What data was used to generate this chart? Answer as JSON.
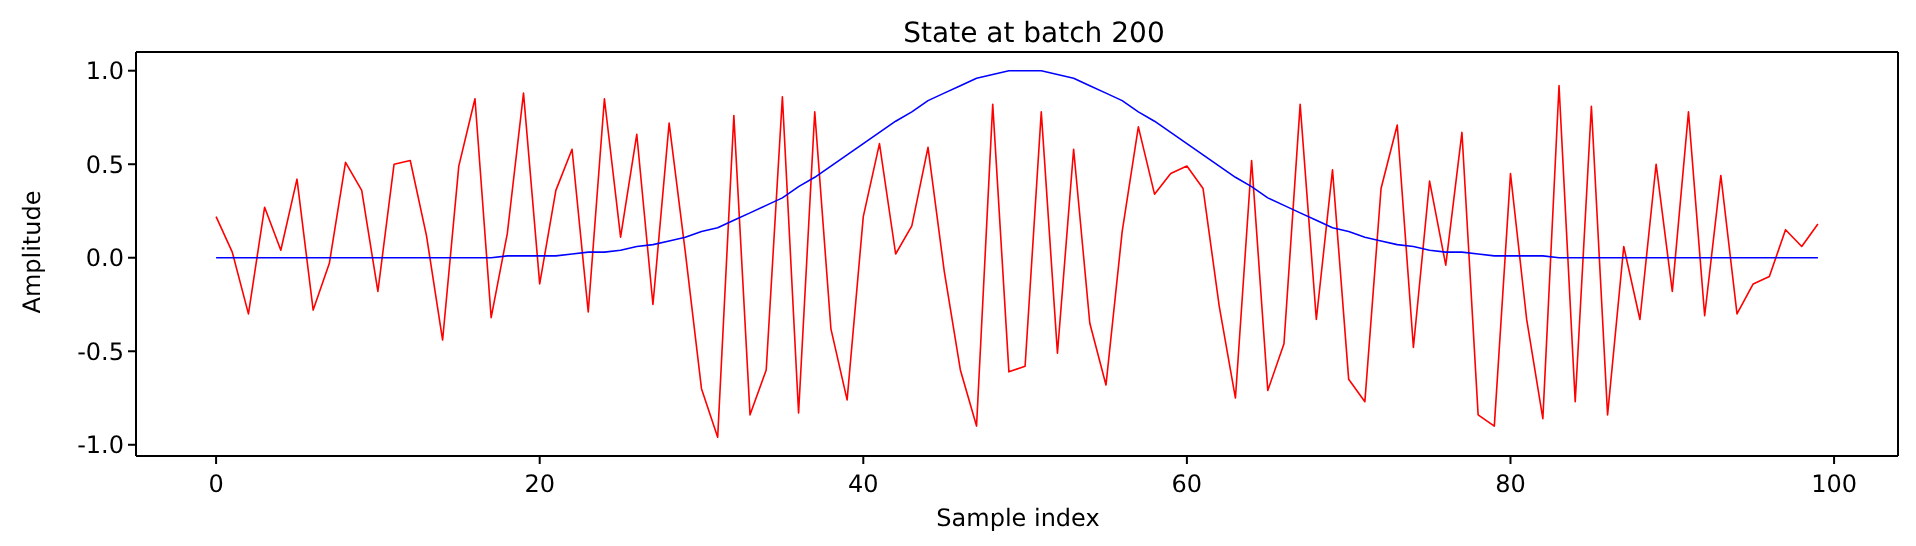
{
  "chart_data": {
    "type": "line",
    "title": "State at batch 200",
    "xlabel": "Sample index",
    "ylabel": "Amplitude",
    "x": [
      0,
      1,
      2,
      3,
      4,
      5,
      6,
      7,
      8,
      9,
      10,
      11,
      12,
      13,
      14,
      15,
      16,
      17,
      18,
      19,
      20,
      21,
      22,
      23,
      24,
      25,
      26,
      27,
      28,
      29,
      30,
      31,
      32,
      33,
      34,
      35,
      36,
      37,
      38,
      39,
      40,
      41,
      42,
      43,
      44,
      45,
      46,
      47,
      48,
      49,
      50,
      51,
      52,
      53,
      54,
      55,
      56,
      57,
      58,
      59,
      60,
      61,
      62,
      63,
      64,
      65,
      66,
      67,
      68,
      69,
      70,
      71,
      72,
      73,
      74,
      75,
      76,
      77,
      78,
      79,
      80,
      81,
      82,
      83,
      84,
      85,
      86,
      87,
      88,
      89,
      90,
      91,
      92,
      93,
      94,
      95,
      96,
      97,
      98,
      99
    ],
    "series": [
      {
        "color": "#ff0000",
        "values": [
          0.22,
          0.03,
          -0.3,
          0.27,
          0.04,
          0.42,
          -0.28,
          -0.03,
          0.51,
          0.36,
          -0.18,
          0.5,
          0.52,
          0.12,
          -0.44,
          0.49,
          0.85,
          -0.32,
          0.13,
          0.88,
          -0.14,
          0.36,
          0.58,
          -0.29,
          0.85,
          0.11,
          0.66,
          -0.25,
          0.72,
          0.03,
          -0.7,
          -0.96,
          0.76,
          -0.84,
          -0.6,
          0.86,
          -0.83,
          0.78,
          -0.38,
          -0.76,
          0.22,
          0.61,
          0.02,
          0.17,
          0.59,
          -0.07,
          -0.6,
          -0.9,
          0.82,
          -0.61,
          -0.58,
          0.78,
          -0.51,
          0.58,
          -0.35,
          -0.68,
          0.14,
          0.7,
          0.34,
          0.45,
          0.49,
          0.37,
          -0.26,
          -0.75,
          0.52,
          -0.71,
          -0.46,
          0.82,
          -0.33,
          0.47,
          -0.65,
          -0.77,
          0.37,
          0.71,
          -0.48,
          0.41,
          -0.04,
          0.67,
          -0.84,
          -0.9,
          0.45,
          -0.33,
          -0.86,
          0.92,
          -0.77,
          0.81,
          -0.84,
          0.06,
          -0.33,
          0.5,
          -0.18,
          0.78,
          -0.31,
          0.44,
          -0.3,
          -0.14,
          -0.1,
          0.15,
          0.06,
          0.18
        ]
      },
      {
        "color": "#0000ff",
        "values": [
          0,
          0,
          0,
          0,
          0,
          0,
          0,
          0,
          0,
          0,
          0,
          0,
          0,
          0,
          0,
          0,
          0,
          0,
          0.01,
          0.01,
          0.01,
          0.01,
          0.02,
          0.03,
          0.03,
          0.04,
          0.06,
          0.07,
          0.09,
          0.11,
          0.14,
          0.16,
          0.2,
          0.24,
          0.28,
          0.32,
          0.38,
          0.43,
          0.49,
          0.55,
          0.61,
          0.67,
          0.73,
          0.78,
          0.84,
          0.88,
          0.92,
          0.96,
          0.98,
          1.0,
          1.0,
          1.0,
          0.98,
          0.96,
          0.92,
          0.88,
          0.84,
          0.78,
          0.73,
          0.67,
          0.61,
          0.55,
          0.49,
          0.43,
          0.38,
          0.32,
          0.28,
          0.24,
          0.2,
          0.16,
          0.14,
          0.11,
          0.09,
          0.07,
          0.06,
          0.04,
          0.03,
          0.03,
          0.02,
          0.01,
          0.01,
          0.01,
          0.01,
          0,
          0,
          0,
          0,
          0,
          0,
          0,
          0,
          0,
          0,
          0,
          0,
          0,
          0,
          0,
          0,
          0
        ]
      }
    ],
    "xlim": [
      -4.95,
      103.95
    ],
    "xticks": [
      0,
      20,
      40,
      60,
      80,
      100
    ],
    "ylim": [
      -1.06,
      1.1
    ],
    "yticks": [
      {
        "value": -1,
        "label": "-1.0"
      },
      {
        "value": -0.5,
        "label": "-0.5"
      },
      {
        "value": 0,
        "label": "0.0"
      },
      {
        "value": 0.5,
        "label": "0.5"
      },
      {
        "value": 1,
        "label": "1.0"
      }
    ],
    "grid": false,
    "legend": false,
    "marker": "none",
    "line_style": "solid"
  }
}
